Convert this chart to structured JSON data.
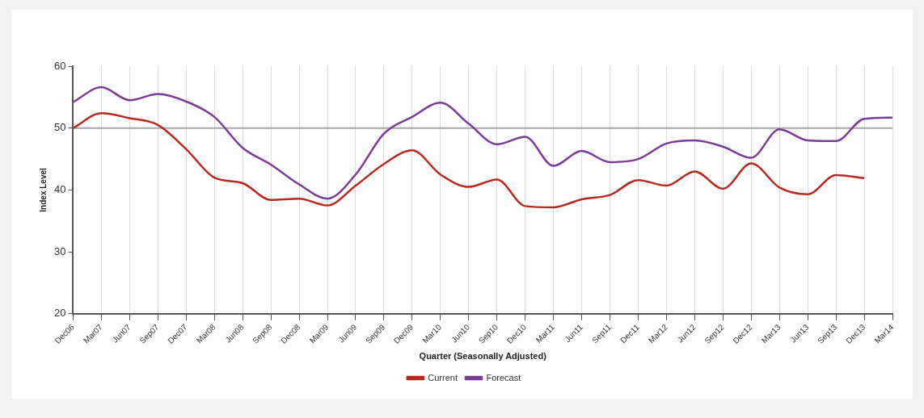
{
  "chart_data": {
    "type": "line",
    "xlabel": "Quarter (Seasonally Adjusted)",
    "ylabel": "Index Level",
    "categories": [
      "Dec06",
      "Mar07",
      "Jun07",
      "Sep07",
      "Dec07",
      "Mar08",
      "Jun08",
      "Sep08",
      "Dec08",
      "Mar09",
      "Jun09",
      "Sep09",
      "Dec09",
      "Mar10",
      "Jun10",
      "Sep10",
      "Dec10",
      "Mar11",
      "Jun11",
      "Sep11",
      "Dec11",
      "Mar12",
      "Jun12",
      "Sep12",
      "Dec12",
      "Mar13",
      "Jun13",
      "Sep13",
      "Dec13",
      "Mar14"
    ],
    "series": [
      {
        "name": "Current",
        "color": "#b8281e",
        "values": [
          50.0,
          52.4,
          51.6,
          50.5,
          46.6,
          42.0,
          41.1,
          38.4,
          38.6,
          37.5,
          40.7,
          44.2,
          46.4,
          42.5,
          40.5,
          41.7,
          37.4,
          37.2,
          38.5,
          39.2,
          41.6,
          40.7,
          43.0,
          40.2,
          44.3,
          40.4,
          39.3,
          42.4,
          41.9,
          null
        ]
      },
      {
        "name": "Forecast",
        "color": "#7b3a96",
        "values": [
          54.2,
          56.6,
          54.5,
          55.5,
          54.3,
          51.8,
          46.8,
          44.1,
          40.9,
          38.6,
          42.5,
          49.1,
          51.8,
          54.1,
          50.7,
          47.4,
          48.6,
          43.9,
          46.3,
          44.5,
          45.0,
          47.5,
          48.0,
          47.0,
          45.2,
          49.8,
          48.0,
          47.9,
          51.5,
          51.7
        ]
      }
    ],
    "ylim": [
      20,
      60
    ],
    "yticks": [
      20,
      30,
      40,
      50,
      60
    ],
    "ref_lines": [
      {
        "axis": "y",
        "value": 50,
        "color": "#a8a8a8"
      }
    ],
    "grid": "x",
    "legend": "bottom",
    "marker": "none",
    "line_style": "solid"
  }
}
